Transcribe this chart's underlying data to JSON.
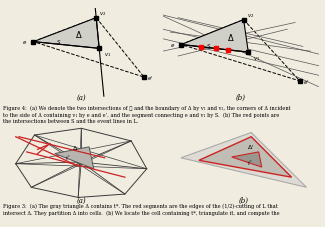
{
  "fig_width": 3.25,
  "fig_height": 2.28,
  "dpi": 100,
  "bg_color": "#f0ece0",
  "caption1": "Figure 4:  (a) We denote the two intersections of ℓ and the boundary of Δ by v₁ and v₂, the corners of Δ incident\nto the side of Δ containing v₁ by e and e’, and the segment connecting e and v₁ by S.  (b) The red points are\nthe intersections between S and the event lines in L.",
  "caption2": "Figure 3:  (a) The gray triangle Δ contains t*. The red segments are the edges of the (1/2)-cutting of L that\nintersect Δ. They partition Δ into cells.  (b) We locate the cell containing t*, triangulate it, and compute the",
  "sub_a1": "(a)",
  "sub_b1": "(b)",
  "sub_a2": "(a)",
  "sub_b2": "(b)"
}
